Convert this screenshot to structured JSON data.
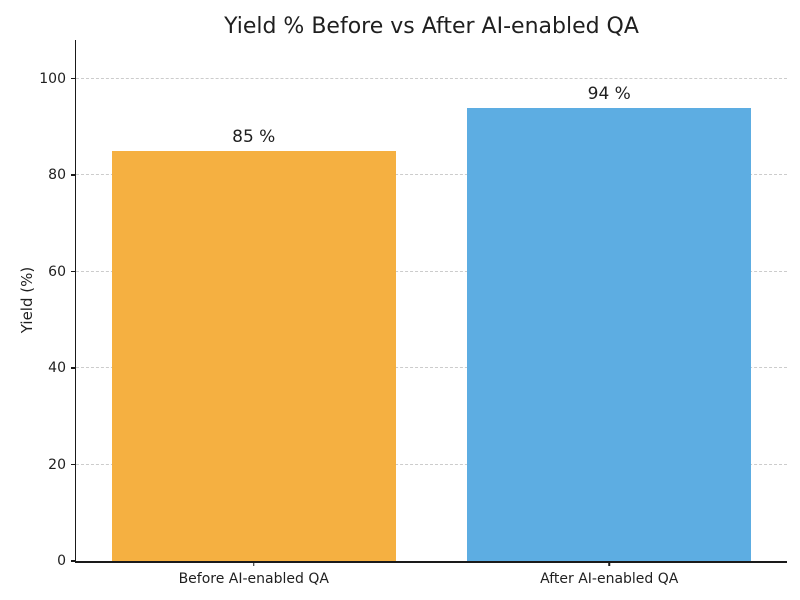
{
  "chart_data": {
    "type": "bar",
    "title": "Yield % Before vs After AI-enabled QA",
    "xlabel": "",
    "ylabel": "Yield (%)",
    "categories": [
      "Before AI-enabled QA",
      "After AI-enabled QA"
    ],
    "values": [
      85,
      94
    ],
    "value_labels": [
      "85 %",
      "94 %"
    ],
    "bar_colors": [
      "#F5B041",
      "#5DADE2"
    ],
    "yticks": [
      0,
      20,
      40,
      60,
      80,
      100
    ],
    "ylim": [
      0,
      108
    ],
    "bar_width_fraction": 0.4,
    "grid": "horizontal dashed gridlines on",
    "legend": "none"
  },
  "colors": {
    "background": "#ffffff",
    "grid": "#cccccc",
    "spine": "#1a1a1a",
    "text": "#1f1f1f"
  }
}
